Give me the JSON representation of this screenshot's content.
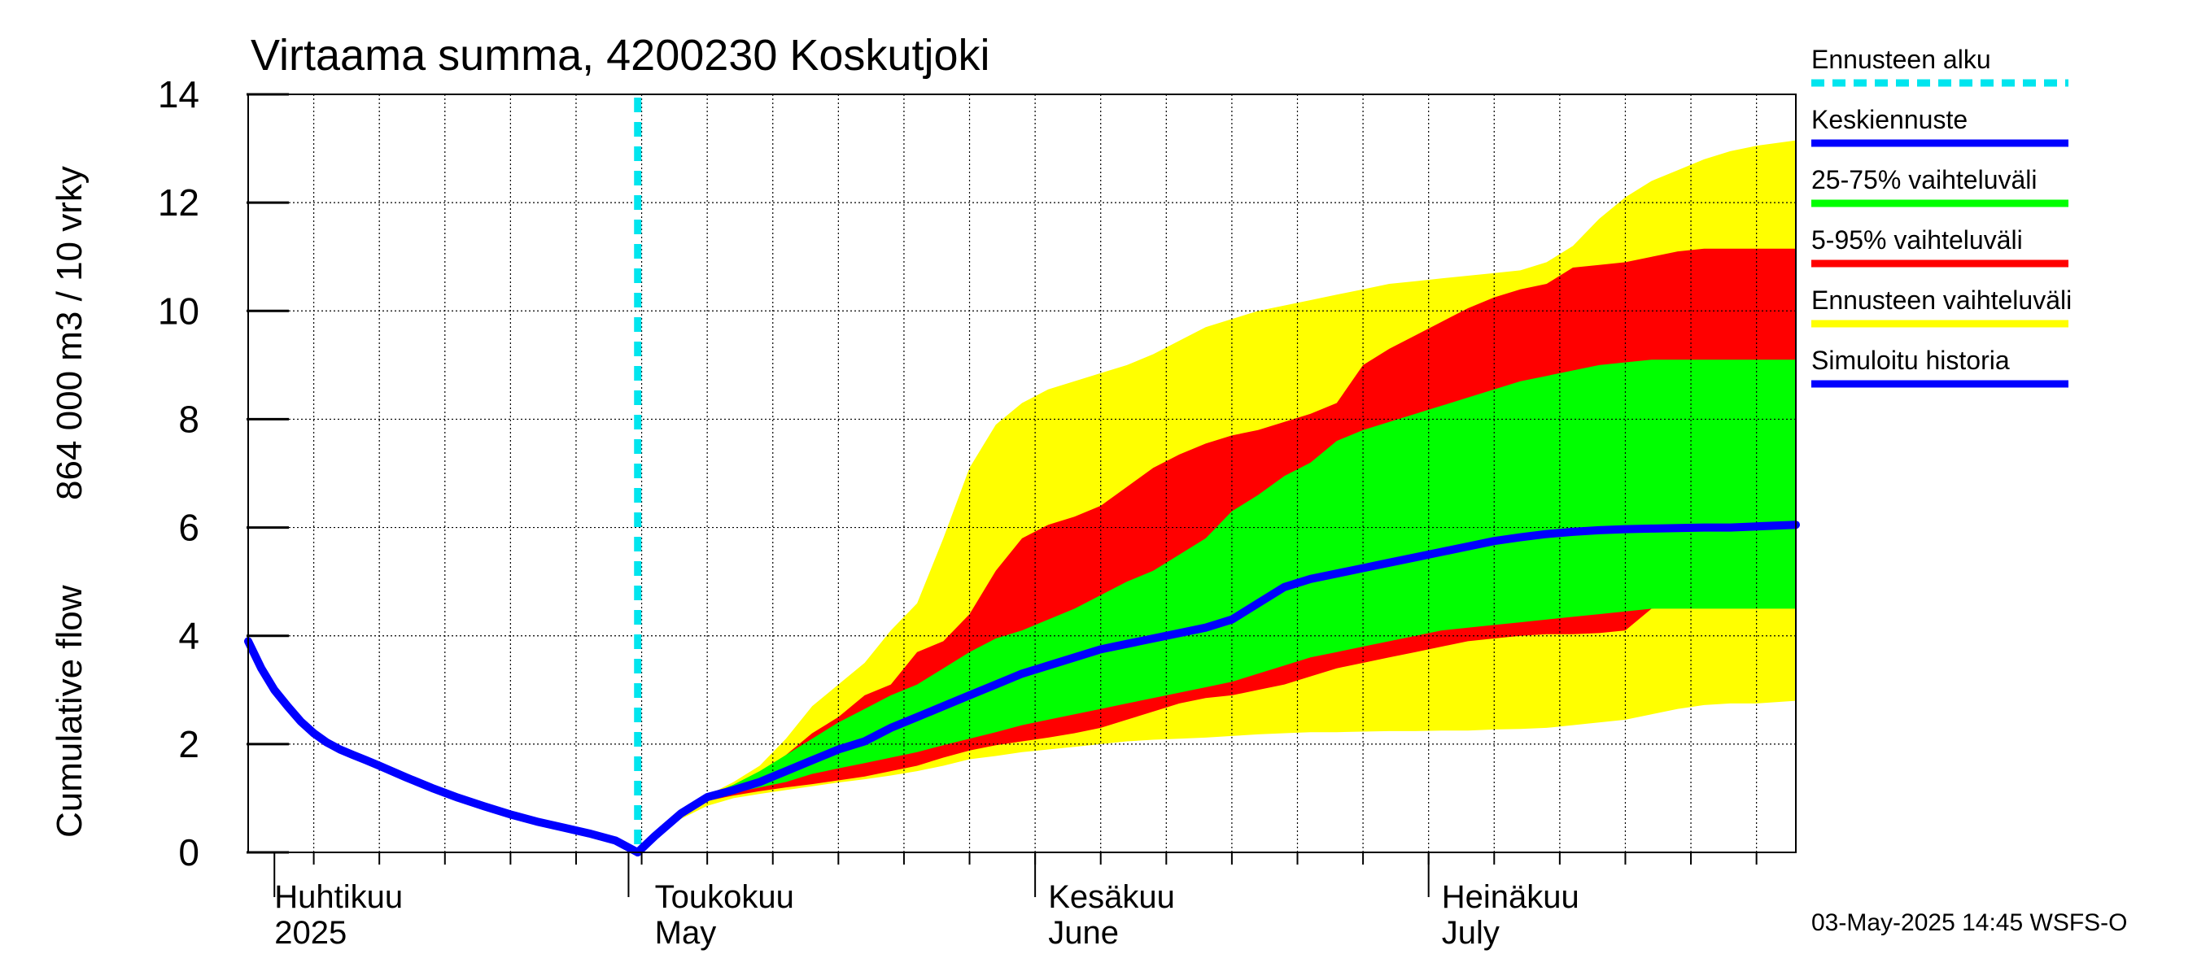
{
  "chart_data": {
    "type": "area",
    "title": "Virtaama summa, 4200230 Koskutjoki",
    "ylabel_lines": [
      "Cumulative flow",
      "864 000 m3 / 10 vrky"
    ],
    "xlabel": "",
    "ylim": [
      0,
      14
    ],
    "yticks": [
      0,
      2,
      4,
      6,
      8,
      10,
      12,
      14
    ],
    "x_axis": {
      "start_day": 0,
      "end_day": 118,
      "note": "day 0 = 30 March 2025"
    },
    "grid": true,
    "month_labels": [
      {
        "day": 2,
        "fi": "Huhtikuu",
        "en": "2025"
      },
      {
        "day": 31,
        "fi": "Toukokuu",
        "en": "May"
      },
      {
        "day": 61,
        "fi": "Kesäkuu",
        "en": "June"
      },
      {
        "day": 91,
        "fi": "Heinäkuu",
        "en": "July"
      }
    ],
    "month_boundaries": [
      2,
      29,
      60,
      90
    ],
    "forecast_start_day": 29.7,
    "history": {
      "x": [
        0,
        1,
        2,
        3,
        4,
        5,
        6,
        7,
        8,
        9,
        10,
        12,
        14,
        16,
        18,
        20,
        22,
        24,
        26,
        28,
        29.7
      ],
      "y": [
        3.9,
        3.4,
        3.0,
        2.7,
        2.42,
        2.2,
        2.03,
        1.9,
        1.8,
        1.7,
        1.6,
        1.39,
        1.19,
        1.01,
        0.85,
        0.7,
        0.57,
        0.46,
        0.35,
        0.22,
        0.0
      ]
    },
    "forecast_x": [
      29.7,
      31,
      33,
      35,
      37,
      39,
      41,
      43,
      45,
      47,
      49,
      51,
      53,
      55,
      57,
      59,
      61,
      63,
      65,
      67,
      69,
      71,
      73,
      75,
      77,
      79,
      81,
      83,
      85,
      87,
      89,
      91,
      93,
      95,
      97,
      99,
      101,
      103,
      105,
      107,
      109,
      111,
      113,
      115,
      118
    ],
    "series": [
      {
        "name": "Ennusteen vaihteluväli",
        "color": "#ffff00",
        "lower": [
          0,
          0.28,
          0.62,
          0.86,
          1.0,
          1.08,
          1.15,
          1.22,
          1.29,
          1.35,
          1.42,
          1.5,
          1.6,
          1.72,
          1.78,
          1.85,
          1.9,
          1.95,
          2.0,
          2.05,
          2.08,
          2.1,
          2.12,
          2.15,
          2.18,
          2.2,
          2.22,
          2.22,
          2.23,
          2.24,
          2.24,
          2.25,
          2.25,
          2.27,
          2.28,
          2.3,
          2.35,
          2.4,
          2.45,
          2.55,
          2.65,
          2.72,
          2.75,
          2.75,
          2.8
        ],
        "upper": [
          0,
          0.32,
          0.75,
          1.05,
          1.3,
          1.6,
          2.1,
          2.7,
          3.1,
          3.5,
          4.1,
          4.6,
          5.8,
          7.1,
          7.9,
          8.3,
          8.55,
          8.7,
          8.85,
          9.0,
          9.2,
          9.45,
          9.7,
          9.85,
          10.0,
          10.1,
          10.2,
          10.3,
          10.4,
          10.5,
          10.55,
          10.6,
          10.65,
          10.7,
          10.75,
          10.9,
          11.2,
          11.7,
          12.1,
          12.4,
          12.6,
          12.8,
          12.95,
          13.05,
          13.15
        ]
      },
      {
        "name": "5-95% vaihteluväli",
        "color": "#ff0000",
        "lower": [
          0,
          0.3,
          0.7,
          0.95,
          1.05,
          1.13,
          1.2,
          1.26,
          1.33,
          1.4,
          1.5,
          1.6,
          1.75,
          1.88,
          1.98,
          2.05,
          2.12,
          2.2,
          2.3,
          2.45,
          2.6,
          2.75,
          2.85,
          2.9,
          3.0,
          3.1,
          3.25,
          3.4,
          3.5,
          3.6,
          3.7,
          3.8,
          3.9,
          3.95,
          4.0,
          4.03,
          4.03,
          4.05,
          4.1,
          4.5,
          4.55,
          4.55,
          4.55,
          4.55,
          4.55
        ],
        "upper": [
          0,
          0.3,
          0.7,
          1.0,
          1.2,
          1.45,
          1.8,
          2.2,
          2.5,
          2.9,
          3.1,
          3.7,
          3.9,
          4.4,
          5.2,
          5.8,
          6.05,
          6.2,
          6.4,
          6.75,
          7.1,
          7.35,
          7.55,
          7.7,
          7.8,
          7.95,
          8.1,
          8.3,
          9.0,
          9.3,
          9.55,
          9.8,
          10.05,
          10.25,
          10.4,
          10.5,
          10.8,
          10.85,
          10.9,
          11.0,
          11.1,
          11.15,
          11.15,
          11.15,
          11.15
        ]
      },
      {
        "name": "25-75% vaihteluväli",
        "color": "#00ff00",
        "lower": [
          0,
          0.3,
          0.72,
          1.0,
          1.1,
          1.2,
          1.3,
          1.45,
          1.55,
          1.65,
          1.75,
          1.85,
          1.98,
          2.1,
          2.22,
          2.35,
          2.45,
          2.55,
          2.65,
          2.75,
          2.85,
          2.95,
          3.05,
          3.15,
          3.3,
          3.45,
          3.6,
          3.7,
          3.8,
          3.9,
          4.0,
          4.1,
          4.15,
          4.2,
          4.25,
          4.3,
          4.35,
          4.4,
          4.45,
          4.5,
          4.5,
          4.5,
          4.5,
          4.5,
          4.5
        ],
        "upper": [
          0,
          0.3,
          0.73,
          1.05,
          1.25,
          1.5,
          1.8,
          2.1,
          2.4,
          2.65,
          2.9,
          3.1,
          3.4,
          3.7,
          3.95,
          4.1,
          4.3,
          4.5,
          4.75,
          5.0,
          5.2,
          5.5,
          5.8,
          6.3,
          6.6,
          6.95,
          7.2,
          7.6,
          7.8,
          7.95,
          8.1,
          8.25,
          8.4,
          8.55,
          8.7,
          8.8,
          8.9,
          9.0,
          9.05,
          9.1,
          9.1,
          9.1,
          9.1,
          9.1,
          9.1
        ]
      },
      {
        "name": "Keskiennuste",
        "color": "#0000ff",
        "values": [
          0,
          0.3,
          0.72,
          1.02,
          1.15,
          1.3,
          1.5,
          1.7,
          1.9,
          2.05,
          2.3,
          2.5,
          2.7,
          2.9,
          3.1,
          3.3,
          3.45,
          3.6,
          3.75,
          3.85,
          3.95,
          4.05,
          4.15,
          4.3,
          4.6,
          4.9,
          5.05,
          5.15,
          5.25,
          5.35,
          5.45,
          5.55,
          5.65,
          5.75,
          5.82,
          5.88,
          5.92,
          5.95,
          5.97,
          5.98,
          5.99,
          6.0,
          6.0,
          6.02,
          6.05
        ]
      }
    ],
    "legend": [
      {
        "label": "Ennusteen alku",
        "color": "#00e5ee",
        "style": "dashed"
      },
      {
        "label": "Keskiennuste",
        "color": "#0000ff",
        "style": "solid"
      },
      {
        "label": "25-75% vaihteluväli",
        "color": "#00ff00",
        "style": "solid"
      },
      {
        "label": "5-95% vaihteluväli",
        "color": "#ff0000",
        "style": "solid"
      },
      {
        "label": "Ennusteen vaihteluväli",
        "color": "#ffff00",
        "style": "solid"
      },
      {
        "label": "Simuloitu historia",
        "color": "#0000ff",
        "style": "solid"
      }
    ],
    "legend_position": "right",
    "footer": "03-May-2025 14:45 WSFS-O"
  }
}
